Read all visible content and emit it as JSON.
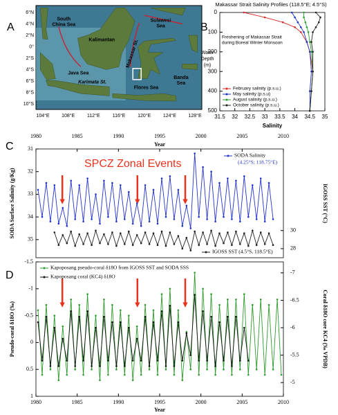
{
  "map": {
    "label": "A",
    "lat_ticks": [
      "6°N",
      "4°N",
      "2°N",
      "0°",
      "2°S",
      "4°S",
      "6°S",
      "8°S",
      "10°S"
    ],
    "lon_ticks": [
      "104°E",
      "108°E",
      "112°E",
      "116°E",
      "120°E",
      "124°E",
      "128°E"
    ],
    "places": [
      [
        "South",
        "China Sea"
      ],
      [
        "Kalimantan"
      ],
      [
        "Sulawesi",
        "Sea"
      ],
      [
        "Java Sea"
      ],
      [
        "Karimata St."
      ],
      [
        "Makassar St."
      ],
      [
        "Flores Sea"
      ],
      [
        "Banda",
        "Sea"
      ]
    ]
  },
  "chart_data": [
    {
      "type": "profile",
      "label": "B",
      "title": "Makassar Strait Salinity Profiles (118.5°E; 4.5°S)",
      "xlabel": "Salinity",
      "ylabel": [
        "Water",
        "Depth",
        "(m)"
      ],
      "annotation": [
        "Freshening of Makassar Strait",
        "during Boreal Winter Monsoon"
      ],
      "xlim": [
        31.5,
        35
      ],
      "xticks": [
        31.5,
        32,
        32.5,
        33,
        33.5,
        34,
        34.5,
        35
      ],
      "ylim": [
        500,
        0
      ],
      "yticks": [
        0,
        100,
        200,
        300,
        400,
        500
      ],
      "depths": [
        0,
        25,
        50,
        75,
        100,
        150,
        200,
        300,
        400,
        500
      ],
      "series": [
        {
          "name": "February salinity (p.s.u.)",
          "color": "#d62728",
          "values": [
            32.3,
            33.0,
            33.6,
            34.0,
            34.2,
            34.4,
            34.5,
            34.6,
            34.55,
            34.5
          ]
        },
        {
          "name": "May salinity (p.s.u)",
          "color": "#1f2fbf",
          "values": [
            33.9,
            34.0,
            34.1,
            34.2,
            34.3,
            34.4,
            34.5,
            34.55,
            34.5,
            34.5
          ]
        },
        {
          "name": "August salinity (p.s.u.)",
          "color": "#2ca02c",
          "values": [
            34.3,
            34.3,
            34.35,
            34.4,
            34.45,
            34.5,
            34.55,
            34.6,
            34.55,
            34.5
          ]
        },
        {
          "name": "October salinity (p.s.u.)",
          "color": "#222222",
          "values": [
            34.7,
            34.85,
            34.8,
            34.7,
            34.6,
            34.55,
            34.6,
            34.6,
            34.55,
            34.5
          ]
        }
      ]
    },
    {
      "type": "line",
      "label": "C",
      "annotation": "SPCZ Zonal Events",
      "xlabel": "Year",
      "ylabel": "SODA Surface Salinity (g/Kg)",
      "y2label": "IGOSS SST (°C)",
      "xlim": [
        1980,
        2010
      ],
      "xticks": [
        1980,
        1985,
        1990,
        1995,
        2000,
        2005,
        2010
      ],
      "ylim": [
        35.8,
        31
      ],
      "yticks": [
        31,
        32,
        33,
        34,
        35
      ],
      "y2lim": [
        27,
        39
      ],
      "y2ticks": [
        28,
        30
      ],
      "arrows": [
        1983.2,
        1992.3,
        1998.1
      ],
      "series": [
        {
          "name": "SODA Salinity",
          "location": "(4.25°S; 118.75°E)",
          "color": "#2233cc",
          "x": [
            1980.25,
            1980.75,
            1981.25,
            1981.75,
            1982.25,
            1982.75,
            1983.25,
            1983.75,
            1984.25,
            1984.75,
            1985.25,
            1985.75,
            1986.25,
            1986.75,
            1987.25,
            1987.75,
            1988.25,
            1988.75,
            1989.25,
            1989.75,
            1990.25,
            1990.75,
            1991.25,
            1991.75,
            1992.25,
            1992.75,
            1993.25,
            1993.75,
            1994.25,
            1994.75,
            1995.25,
            1995.75,
            1996.25,
            1996.75,
            1997.25,
            1997.75,
            1998.25,
            1998.75,
            1999.25,
            1999.75,
            2000.25,
            2000.75,
            2001.25,
            2001.75,
            2002.25,
            2002.75,
            2003.25,
            2003.75,
            2004.25,
            2004.75,
            2005.25,
            2005.75,
            2006.25,
            2006.75,
            2007.25,
            2007.75,
            2008.25,
            2008.75
          ],
          "values": [
            32.8,
            34.0,
            32.5,
            34.2,
            32.6,
            34.3,
            33.6,
            34.4,
            32.4,
            34.1,
            32.6,
            34.2,
            32.3,
            34.1,
            33.0,
            34.3,
            32.4,
            34.0,
            32.5,
            34.2,
            32.6,
            34.1,
            32.9,
            34.3,
            33.4,
            34.4,
            32.6,
            34.2,
            32.8,
            34.3,
            32.3,
            34.0,
            32.2,
            34.1,
            32.8,
            34.4,
            33.5,
            34.5,
            31.2,
            34.0,
            31.8,
            34.1,
            32.0,
            34.2,
            32.5,
            34.0,
            32.3,
            34.1,
            32.4,
            34.2,
            32.2,
            34.0,
            32.6,
            34.1,
            32.3,
            34.2,
            32.5,
            34.1
          ]
        },
        {
          "name": "IGOSS SST (4.5°S, 118.5°E)",
          "color": "#222222",
          "axis": "y2",
          "x": [
            1982.25,
            1982.75,
            1983.25,
            1983.75,
            1984.25,
            1984.75,
            1985.25,
            1985.75,
            1986.25,
            1986.75,
            1987.25,
            1987.75,
            1988.25,
            1988.75,
            1989.25,
            1989.75,
            1990.25,
            1990.75,
            1991.25,
            1991.75,
            1992.25,
            1992.75,
            1993.25,
            1993.75,
            1994.25,
            1994.75,
            1995.25,
            1995.75,
            1996.25,
            1996.75,
            1997.25,
            1997.75,
            1998.25,
            1998.75,
            1999.25,
            1999.75,
            2000.25,
            2000.75,
            2001.25,
            2001.75,
            2002.25,
            2002.75,
            2003.25,
            2003.75,
            2004.25,
            2004.75,
            2005.25,
            2005.75,
            2006.25,
            2006.75,
            2007.25,
            2007.75,
            2008.25,
            2008.75
          ],
          "values": [
            29.8,
            28.4,
            29.5,
            28.6,
            29.9,
            28.3,
            29.6,
            28.5,
            29.7,
            28.4,
            30.0,
            28.6,
            29.6,
            28.5,
            29.8,
            28.3,
            29.7,
            28.5,
            29.9,
            28.4,
            29.5,
            28.6,
            29.8,
            28.5,
            29.7,
            28.4,
            29.9,
            28.3,
            29.8,
            28.5,
            29.4,
            28.0,
            29.2,
            27.8,
            29.9,
            28.4,
            29.8,
            28.5,
            30.0,
            28.3,
            29.7,
            28.6,
            29.8,
            28.4,
            29.9,
            28.5,
            29.7,
            28.3,
            30.0,
            28.4,
            29.8,
            28.5,
            29.7,
            28.4
          ]
        }
      ]
    },
    {
      "type": "line",
      "label": "D",
      "xlabel": "Year",
      "ylabel": "Pseudo-coral δ18O (‰)",
      "y2label": "Coral δ18O core KC4 (‰ VPDB)",
      "xlim": [
        1980,
        2010
      ],
      "xticks": [
        1980,
        1985,
        1990,
        1995,
        2000,
        2005,
        2010
      ],
      "ylim": [
        1,
        -1.5
      ],
      "yticks": [
        -1.5,
        -1,
        -0.5,
        0,
        0.5,
        1
      ],
      "y2lim": [
        -4.75,
        -7.2
      ],
      "y2ticks": [
        -7,
        -6.5,
        -6,
        -5.5,
        -5
      ],
      "arrows": [
        1983.2,
        1992.3,
        1998.1
      ],
      "series": [
        {
          "name": "Kapoposang pseudo-coral δ18O from IGOSS SST and SODA SSS",
          "color": "#2e9a2e",
          "x": [
            1980.25,
            1980.75,
            1981.25,
            1981.75,
            1982.25,
            1982.75,
            1983.25,
            1983.75,
            1984.25,
            1984.75,
            1985.25,
            1985.75,
            1986.25,
            1986.75,
            1987.25,
            1987.75,
            1988.25,
            1988.75,
            1989.25,
            1989.75,
            1990.25,
            1990.75,
            1991.25,
            1991.75,
            1992.25,
            1992.75,
            1993.25,
            1993.75,
            1994.25,
            1994.75,
            1995.25,
            1995.75,
            1996.25,
            1996.75,
            1997.25,
            1997.75,
            1998.25,
            1998.75,
            1999.25,
            1999.75,
            2000.25,
            2000.75,
            2001.25,
            2001.75,
            2002.25,
            2002.75,
            2003.25,
            2003.75,
            2004.25,
            2004.75,
            2005.25,
            2005.75,
            2006.25,
            2006.75,
            2007.25,
            2007.75,
            2008.25,
            2008.75,
            2009.25,
            2009.75
          ],
          "values": [
            -0.6,
            0.6,
            -0.7,
            0.5,
            -0.5,
            0.7,
            -0.3,
            0.6,
            -0.8,
            0.5,
            -0.7,
            0.6,
            -0.9,
            0.5,
            -0.5,
            0.7,
            -0.8,
            0.6,
            -0.7,
            0.5,
            -0.6,
            0.6,
            -0.5,
            0.7,
            -0.3,
            0.6,
            -0.7,
            0.5,
            -0.6,
            0.6,
            -0.9,
            0.5,
            -1.0,
            0.6,
            -0.6,
            0.7,
            -0.2,
            0.5,
            -1.3,
            0.6,
            -1.0,
            0.5,
            -0.9,
            0.6,
            -0.7,
            0.5,
            -0.8,
            0.6,
            -0.8,
            0.5,
            -0.9,
            0.6,
            -0.7,
            0.5,
            -0.8,
            0.6,
            -0.7,
            0.5,
            -0.8,
            0.6
          ]
        },
        {
          "name": "Kapoposang coral (KC4) δ18O",
          "color": "#111111",
          "axis": "y2",
          "x": [
            1980.25,
            1980.75,
            1981.25,
            1981.75,
            1982.25,
            1982.75,
            1983.25,
            1983.75,
            1984.25,
            1984.75,
            1985.25,
            1985.75,
            1986.25,
            1986.75,
            1987.25,
            1987.75,
            1988.25,
            1988.75,
            1989.25,
            1989.75,
            1990.25,
            1990.75,
            1991.25,
            1991.75,
            1992.25,
            1992.75,
            1993.25,
            1993.75,
            1994.25,
            1994.75,
            1995.25,
            1995.75,
            1996.25,
            1996.75,
            1997.25,
            1997.75,
            1998.25,
            1998.75,
            1999.25,
            1999.75,
            2000.25,
            2000.75,
            2001.25,
            2001.75,
            2002.25,
            2002.75,
            2003.25,
            2003.75,
            2004.25,
            2004.75,
            2005.25,
            2005.75
          ],
          "values": [
            -6.1,
            -5.4,
            -6.2,
            -5.3,
            -6.0,
            -5.3,
            -5.8,
            -5.4,
            -6.3,
            -5.3,
            -6.2,
            -5.4,
            -6.3,
            -5.3,
            -6.0,
            -5.3,
            -6.2,
            -5.4,
            -6.1,
            -5.3,
            -6.1,
            -5.3,
            -6.0,
            -5.4,
            -5.8,
            -5.4,
            -6.2,
            -5.3,
            -6.1,
            -5.4,
            -6.3,
            -5.3,
            -6.4,
            -5.3,
            -6.1,
            -5.4,
            -5.9,
            -5.5,
            -6.6,
            -5.4,
            -6.3,
            -5.4,
            -6.2,
            -5.3,
            -6.1,
            -5.4,
            -6.2,
            -5.3,
            -6.2,
            -5.4,
            -6.0,
            -5.4
          ]
        }
      ]
    }
  ]
}
